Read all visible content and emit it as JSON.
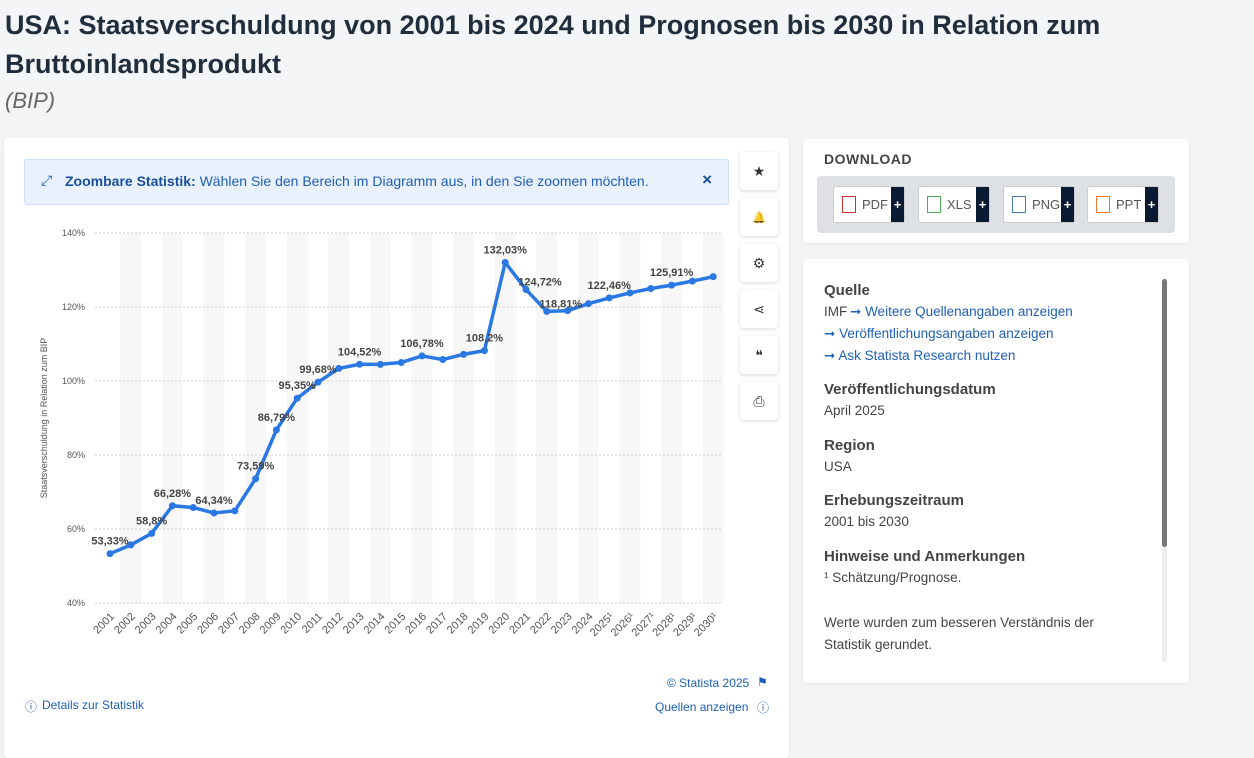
{
  "header": {
    "title": "USA: Staatsverschuldung von 2001 bis 2024 und Prognosen bis 2030 in Relation zum Bruttoinlandsprodukt",
    "subtitle": "(BIP)"
  },
  "banner": {
    "bold": "Zoombare Statistik:",
    "text": " Wählen Sie den Bereich im Diagramm aus, in den Sie zoomen möchten.",
    "close": "×"
  },
  "toolbar": {
    "star": "★",
    "bell": "🔔",
    "gear": "⚙",
    "share": "⋖",
    "quote": "❝",
    "print": "⎙"
  },
  "footer": {
    "copyright": "© Statista 2025",
    "details": "Details zur Statistik",
    "sources": "Quellen anzeigen"
  },
  "download": {
    "title": "DOWNLOAD",
    "buttons": [
      "PDF",
      "XLS",
      "PNG",
      "PPT"
    ],
    "plus": "+"
  },
  "info": {
    "source_h": "Quelle",
    "source_v": "IMF",
    "link1": "Weitere Quellenangaben anzeigen",
    "link2": "Veröffentlichungsangaben anzeigen",
    "link3": "Ask Statista Research nutzen",
    "date_h": "Veröffentlichungsdatum",
    "date_v": "April 2025",
    "region_h": "Region",
    "region_v": "USA",
    "period_h": "Erhebungszeitraum",
    "period_v": "2001 bis 2030",
    "notes_h": "Hinweise und Anmerkungen",
    "notes_v1": "¹ Schätzung/Prognose.",
    "notes_v2": "Werte wurden zum besseren Verständnis der Statistik gerundet."
  },
  "colors": {
    "line": "#2a78e4",
    "accent": "#1f5fb5"
  },
  "chart_data": {
    "type": "line",
    "title": "",
    "xlabel": "",
    "ylabel": "Staatsverschuldung in Relation zum BIP",
    "ylim": [
      40,
      140
    ],
    "yticks": [
      "40%",
      "60%",
      "80%",
      "100%",
      "120%",
      "140%"
    ],
    "categories": [
      "2001",
      "2002",
      "2003",
      "2004",
      "2005",
      "2006",
      "2007",
      "2008",
      "2009",
      "2010",
      "2011",
      "2012",
      "2013",
      "2014",
      "2015",
      "2016",
      "2017",
      "2018",
      "2019",
      "2020",
      "2021",
      "2022",
      "2023",
      "2024",
      "2025¹",
      "2026¹",
      "2027¹",
      "2028¹",
      "2029¹",
      "2030¹"
    ],
    "values": [
      53.33,
      55.7,
      58.8,
      66.28,
      65.8,
      64.34,
      64.9,
      73.59,
      86.79,
      95.35,
      99.68,
      103.4,
      104.52,
      104.5,
      105.0,
      106.78,
      105.8,
      107.2,
      108.2,
      132.03,
      124.72,
      118.81,
      119.0,
      120.9,
      122.46,
      123.8,
      125.0,
      125.91,
      127.0,
      128.2
    ],
    "labels": {
      "0": "53,33%",
      "2": "58,8%",
      "3": "66,28%",
      "5": "64,34%",
      "7": "73,59%",
      "8": "86,79%",
      "9": "95,35%",
      "10": "99,68%",
      "12": "104,52%",
      "15": "106,78%",
      "18": "108,2%",
      "19": "132,03%",
      "20": "124,72%",
      "21": "118,81%",
      "24": "122,46%",
      "27": "125,91%"
    },
    "grid": true,
    "legend": "none"
  }
}
